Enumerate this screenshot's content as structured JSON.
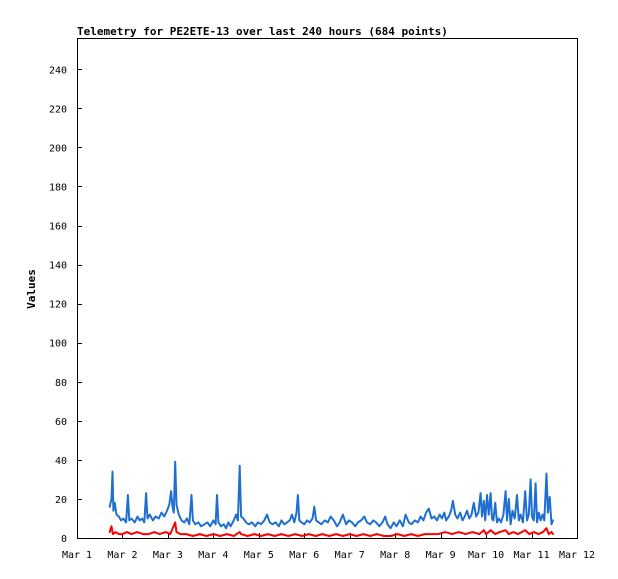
{
  "chart_data": {
    "type": "line",
    "title": "Telemetry for PE2ETE-13 over last 240 hours (684 points)",
    "xlabel": "",
    "ylabel": "Values",
    "xlim": [
      0,
      11
    ],
    "ylim": [
      0,
      256
    ],
    "x_ticks": [
      {
        "value": 0,
        "label": "Mar 1"
      },
      {
        "value": 1,
        "label": "Mar 2"
      },
      {
        "value": 2,
        "label": "Mar 3"
      },
      {
        "value": 3,
        "label": "Mar 4"
      },
      {
        "value": 4,
        "label": "Mar 5"
      },
      {
        "value": 5,
        "label": "Mar 6"
      },
      {
        "value": 6,
        "label": "Mar 7"
      },
      {
        "value": 7,
        "label": "Mar 8"
      },
      {
        "value": 8,
        "label": "Mar 9"
      },
      {
        "value": 9,
        "label": "Mar 10"
      },
      {
        "value": 10,
        "label": "Mar 11"
      },
      {
        "value": 11,
        "label": "Mar 12"
      }
    ],
    "y_ticks": [
      0,
      20,
      40,
      60,
      80,
      100,
      120,
      140,
      160,
      180,
      200,
      220,
      240
    ],
    "grid": false,
    "legend": "none",
    "series": [
      {
        "color": "#1f6fd1",
        "points": [
          [
            0.72,
            16
          ],
          [
            0.76,
            20
          ],
          [
            0.78,
            34
          ],
          [
            0.8,
            14
          ],
          [
            0.83,
            18
          ],
          [
            0.87,
            12
          ],
          [
            0.92,
            11
          ],
          [
            0.97,
            9
          ],
          [
            1.02,
            10
          ],
          [
            1.08,
            8
          ],
          [
            1.12,
            22
          ],
          [
            1.15,
            9
          ],
          [
            1.2,
            10
          ],
          [
            1.27,
            8
          ],
          [
            1.33,
            11
          ],
          [
            1.38,
            9
          ],
          [
            1.43,
            10
          ],
          [
            1.48,
            8
          ],
          [
            1.52,
            23
          ],
          [
            1.55,
            10
          ],
          [
            1.6,
            12
          ],
          [
            1.67,
            9
          ],
          [
            1.73,
            11
          ],
          [
            1.8,
            10
          ],
          [
            1.86,
            13
          ],
          [
            1.92,
            11
          ],
          [
            1.98,
            14
          ],
          [
            2.03,
            17
          ],
          [
            2.07,
            24
          ],
          [
            2.1,
            16
          ],
          [
            2.13,
            13
          ],
          [
            2.16,
            39
          ],
          [
            2.19,
            17
          ],
          [
            2.24,
            12
          ],
          [
            2.3,
            9
          ],
          [
            2.36,
            8
          ],
          [
            2.42,
            10
          ],
          [
            2.47,
            7
          ],
          [
            2.52,
            22
          ],
          [
            2.55,
            9
          ],
          [
            2.6,
            7
          ],
          [
            2.67,
            8
          ],
          [
            2.73,
            6
          ],
          [
            2.8,
            7
          ],
          [
            2.87,
            8
          ],
          [
            2.93,
            6
          ],
          [
            3.0,
            9
          ],
          [
            3.05,
            7
          ],
          [
            3.08,
            22
          ],
          [
            3.11,
            8
          ],
          [
            3.17,
            6
          ],
          [
            3.23,
            7
          ],
          [
            3.28,
            5
          ],
          [
            3.33,
            8
          ],
          [
            3.38,
            6
          ],
          [
            3.45,
            9
          ],
          [
            3.5,
            12
          ],
          [
            3.54,
            9
          ],
          [
            3.58,
            37
          ],
          [
            3.61,
            11
          ],
          [
            3.66,
            10
          ],
          [
            3.72,
            8
          ],
          [
            3.78,
            7
          ],
          [
            3.85,
            8
          ],
          [
            3.92,
            6
          ],
          [
            3.98,
            8
          ],
          [
            4.05,
            7
          ],
          [
            4.12,
            9
          ],
          [
            4.18,
            12
          ],
          [
            4.24,
            8
          ],
          [
            4.3,
            7
          ],
          [
            4.37,
            8
          ],
          [
            4.44,
            6
          ],
          [
            4.5,
            9
          ],
          [
            4.56,
            7
          ],
          [
            4.62,
            8
          ],
          [
            4.68,
            9
          ],
          [
            4.73,
            12
          ],
          [
            4.78,
            8
          ],
          [
            4.83,
            13
          ],
          [
            4.86,
            22
          ],
          [
            4.89,
            9
          ],
          [
            4.94,
            8
          ],
          [
            5.0,
            7
          ],
          [
            5.06,
            9
          ],
          [
            5.12,
            8
          ],
          [
            5.18,
            10
          ],
          [
            5.22,
            16
          ],
          [
            5.26,
            9
          ],
          [
            5.32,
            8
          ],
          [
            5.38,
            7
          ],
          [
            5.45,
            9
          ],
          [
            5.52,
            8
          ],
          [
            5.58,
            11
          ],
          [
            5.65,
            9
          ],
          [
            5.72,
            6
          ],
          [
            5.78,
            8
          ],
          [
            5.85,
            12
          ],
          [
            5.92,
            7
          ],
          [
            5.98,
            9
          ],
          [
            6.05,
            8
          ],
          [
            6.12,
            6
          ],
          [
            6.18,
            8
          ],
          [
            6.25,
            9
          ],
          [
            6.32,
            11
          ],
          [
            6.38,
            8
          ],
          [
            6.45,
            7
          ],
          [
            6.52,
            9
          ],
          [
            6.58,
            8
          ],
          [
            6.65,
            6
          ],
          [
            6.72,
            8
          ],
          [
            6.78,
            11
          ],
          [
            6.83,
            7
          ],
          [
            6.9,
            5
          ],
          [
            6.97,
            8
          ],
          [
            7.03,
            6
          ],
          [
            7.1,
            9
          ],
          [
            7.17,
            6
          ],
          [
            7.23,
            12
          ],
          [
            7.3,
            8
          ],
          [
            7.36,
            7
          ],
          [
            7.43,
            9
          ],
          [
            7.5,
            8
          ],
          [
            7.56,
            11
          ],
          [
            7.62,
            9
          ],
          [
            7.68,
            13
          ],
          [
            7.74,
            15
          ],
          [
            7.8,
            10
          ],
          [
            7.86,
            11
          ],
          [
            7.92,
            9
          ],
          [
            7.98,
            12
          ],
          [
            8.03,
            10
          ],
          [
            8.08,
            13
          ],
          [
            8.12,
            9
          ],
          [
            8.18,
            11
          ],
          [
            8.23,
            14
          ],
          [
            8.27,
            19
          ],
          [
            8.32,
            12
          ],
          [
            8.37,
            10
          ],
          [
            8.43,
            13
          ],
          [
            8.48,
            9
          ],
          [
            8.53,
            11
          ],
          [
            8.58,
            14
          ],
          [
            8.63,
            10
          ],
          [
            8.68,
            12
          ],
          [
            8.73,
            18
          ],
          [
            8.78,
            11
          ],
          [
            8.83,
            13
          ],
          [
            8.88,
            23
          ],
          [
            8.91,
            11
          ],
          [
            8.95,
            19
          ],
          [
            8.98,
            9
          ],
          [
            9.02,
            22
          ],
          [
            9.06,
            12
          ],
          [
            9.1,
            23
          ],
          [
            9.13,
            10
          ],
          [
            9.16,
            9
          ],
          [
            9.2,
            18
          ],
          [
            9.24,
            8
          ],
          [
            9.28,
            10
          ],
          [
            9.33,
            8
          ],
          [
            9.38,
            12
          ],
          [
            9.43,
            24
          ],
          [
            9.46,
            9
          ],
          [
            9.5,
            20
          ],
          [
            9.54,
            7
          ],
          [
            9.58,
            14
          ],
          [
            9.63,
            10
          ],
          [
            9.68,
            22
          ],
          [
            9.72,
            9
          ],
          [
            9.76,
            12
          ],
          [
            9.81,
            8
          ],
          [
            9.86,
            24
          ],
          [
            9.9,
            9
          ],
          [
            9.94,
            12
          ],
          [
            9.98,
            30
          ],
          [
            10.01,
            11
          ],
          [
            10.05,
            9
          ],
          [
            10.09,
            28
          ],
          [
            10.12,
            8
          ],
          [
            10.16,
            13
          ],
          [
            10.2,
            9
          ],
          [
            10.24,
            12
          ],
          [
            10.28,
            9
          ],
          [
            10.33,
            33
          ],
          [
            10.36,
            13
          ],
          [
            10.4,
            21
          ],
          [
            10.44,
            7
          ],
          [
            10.47,
            9
          ]
        ]
      },
      {
        "color": "#ff0000",
        "points": [
          [
            0.72,
            3
          ],
          [
            0.76,
            6
          ],
          [
            0.79,
            2
          ],
          [
            0.85,
            3
          ],
          [
            0.92,
            2
          ],
          [
            1.0,
            2
          ],
          [
            1.1,
            3
          ],
          [
            1.2,
            2
          ],
          [
            1.32,
            3
          ],
          [
            1.45,
            2
          ],
          [
            1.58,
            2
          ],
          [
            1.7,
            3
          ],
          [
            1.82,
            2
          ],
          [
            1.95,
            3
          ],
          [
            2.05,
            2
          ],
          [
            2.16,
            8
          ],
          [
            2.19,
            3
          ],
          [
            2.28,
            2
          ],
          [
            2.4,
            2
          ],
          [
            2.55,
            1
          ],
          [
            2.7,
            2
          ],
          [
            2.85,
            1
          ],
          [
            3.0,
            2
          ],
          [
            3.15,
            1
          ],
          [
            3.3,
            2
          ],
          [
            3.45,
            1
          ],
          [
            3.58,
            3
          ],
          [
            3.61,
            2
          ],
          [
            3.75,
            1
          ],
          [
            3.9,
            2
          ],
          [
            4.05,
            1
          ],
          [
            4.2,
            2
          ],
          [
            4.35,
            1
          ],
          [
            4.5,
            2
          ],
          [
            4.65,
            1
          ],
          [
            4.8,
            2
          ],
          [
            4.95,
            1
          ],
          [
            5.1,
            2
          ],
          [
            5.25,
            1
          ],
          [
            5.4,
            2
          ],
          [
            5.55,
            1
          ],
          [
            5.7,
            2
          ],
          [
            5.85,
            1
          ],
          [
            6.0,
            2
          ],
          [
            6.15,
            1
          ],
          [
            6.3,
            2
          ],
          [
            6.45,
            1
          ],
          [
            6.6,
            2
          ],
          [
            6.75,
            1
          ],
          [
            6.9,
            1
          ],
          [
            7.05,
            2
          ],
          [
            7.2,
            1
          ],
          [
            7.35,
            2
          ],
          [
            7.5,
            1
          ],
          [
            7.65,
            2
          ],
          [
            7.8,
            2
          ],
          [
            7.95,
            2
          ],
          [
            8.1,
            3
          ],
          [
            8.25,
            2
          ],
          [
            8.4,
            3
          ],
          [
            8.55,
            2
          ],
          [
            8.7,
            3
          ],
          [
            8.85,
            2
          ],
          [
            8.95,
            4
          ],
          [
            9.0,
            2
          ],
          [
            9.1,
            4
          ],
          [
            9.2,
            2
          ],
          [
            9.3,
            3
          ],
          [
            9.43,
            4
          ],
          [
            9.5,
            2
          ],
          [
            9.6,
            3
          ],
          [
            9.7,
            2
          ],
          [
            9.86,
            4
          ],
          [
            9.95,
            2
          ],
          [
            10.05,
            3
          ],
          [
            10.15,
            2
          ],
          [
            10.25,
            3
          ],
          [
            10.33,
            5
          ],
          [
            10.38,
            2
          ],
          [
            10.44,
            3
          ],
          [
            10.47,
            2
          ]
        ]
      }
    ]
  }
}
